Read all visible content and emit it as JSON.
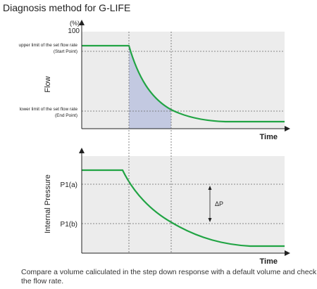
{
  "title": "Diagnosis method for G-LIFE",
  "caption": "Compare a volume caliculated in the step down response with a default volume and check the flow rate.",
  "top_chart": {
    "y_unit": "(%)",
    "y_max": "100",
    "y_axis_label": "Flow",
    "x_axis_label": "Time",
    "upper_limit_label": "upper limit of the set flow rate",
    "upper_limit_sub": "(Start Point)",
    "lower_limit_label": "lower limit of the set flow rate",
    "lower_limit_sub": "(End Point)"
  },
  "bottom_chart": {
    "y_axis_label": "Internal Pressure",
    "x_axis_label": "Time",
    "p1a_label": "P1(a)",
    "p1b_label": "P1(b)",
    "delta_label": "ΔP"
  },
  "colors": {
    "curve": "#21a444",
    "plot_bg": "#ececec",
    "shaded_area": "#c3c9e1",
    "axis": "#222222"
  }
}
